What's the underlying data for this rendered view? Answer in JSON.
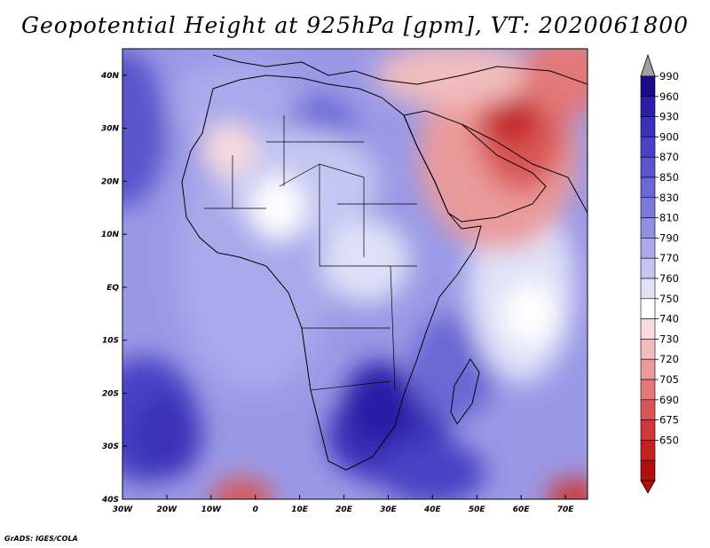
{
  "title": "Geopotential Height at 925hPa [gpm], VT: 2020061800",
  "credit": "GrADS: IGES/COLA",
  "axes": {
    "lon_labels": [
      "30W",
      "20W",
      "10W",
      "0",
      "10E",
      "20E",
      "30E",
      "40E",
      "50E",
      "60E",
      "70E"
    ],
    "lat_labels": [
      "40N",
      "30N",
      "20N",
      "10N",
      "EQ",
      "10S",
      "20S",
      "30S",
      "40S"
    ],
    "lon_range": [
      -30,
      75
    ],
    "lat_range": [
      -40,
      45
    ]
  },
  "colorbar": {
    "labels": [
      "990",
      "960",
      "930",
      "900",
      "870",
      "850",
      "830",
      "810",
      "790",
      "770",
      "760",
      "750",
      "740",
      "730",
      "720",
      "705",
      "690",
      "675",
      "650"
    ],
    "colors": [
      "#1a0d8c",
      "#2a1fa6",
      "#3a30b8",
      "#4a42c4",
      "#5a55cc",
      "#6a68d4",
      "#7c7bdc",
      "#9190e3",
      "#a9a9eb",
      "#c4c6f2",
      "#e0e1f8",
      "#ffffff",
      "#f8dcdc",
      "#f1bcbc",
      "#ea9a9a",
      "#e27878",
      "#d95656",
      "#cf3838",
      "#c22222",
      "#b01010"
    ],
    "over_color": "#a0a0a0",
    "under_color": "#b01010"
  },
  "field": {
    "units": "gpm",
    "level": "925hPa",
    "valid_time": "2020061800"
  }
}
